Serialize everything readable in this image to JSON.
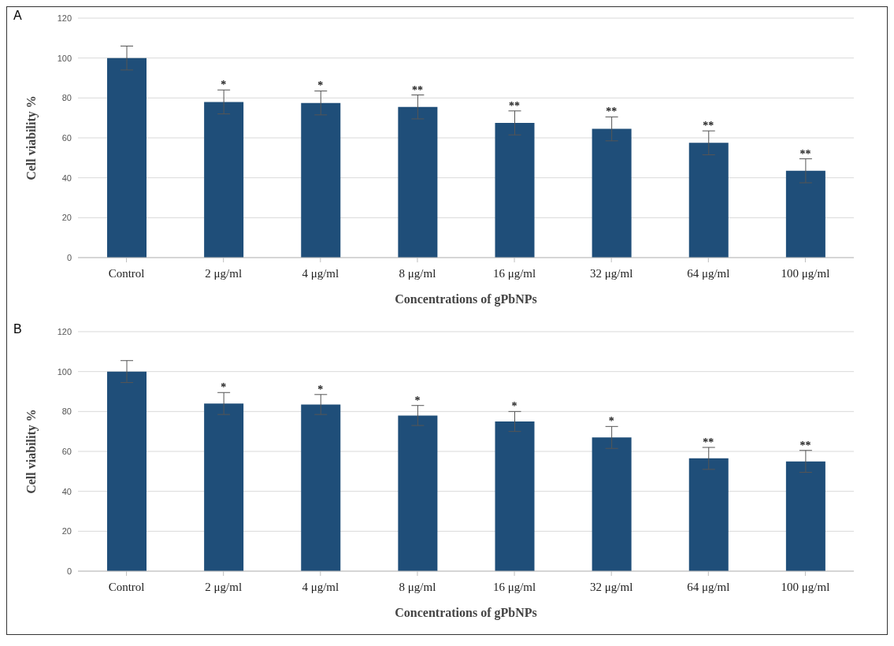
{
  "chart_data": [
    {
      "type": "bar",
      "title": "A",
      "xlabel": "Concentrations  of gPbNPs",
      "ylabel": "Cell viability  %",
      "categories": [
        "Control",
        "2 μg/ml",
        "4 μg/ml",
        "8 μg/ml",
        "16 μg/ml",
        "32 μg/ml",
        "64 μg/ml",
        "100 μg/ml"
      ],
      "values": [
        100,
        78,
        77.5,
        75.5,
        67.5,
        64.5,
        57.5,
        43.5
      ],
      "errors": [
        6,
        6,
        6,
        6,
        6,
        6,
        6,
        6
      ],
      "color": "#1f4e79",
      "ylim": [
        0,
        120
      ],
      "yticks": [
        0,
        20,
        40,
        60,
        80,
        100,
        120
      ],
      "grid": "y",
      "annotations": [
        {
          "text": "*",
          "x": "2 μg/ml",
          "y": 78
        },
        {
          "text": "*",
          "x": "4 μg/ml",
          "y": 77.5
        },
        {
          "text": "**",
          "x": "8 μg/ml",
          "y": 75.5
        },
        {
          "text": "**",
          "x": "16 μg/ml",
          "y": 67.5
        },
        {
          "text": "**",
          "x": "32 μg/ml",
          "y": 64.5
        },
        {
          "text": "**",
          "x": "64 μg/ml",
          "y": 57.5
        },
        {
          "text": "**",
          "x": "100 μg/ml",
          "y": 43.5
        }
      ]
    },
    {
      "type": "bar",
      "title": "B",
      "xlabel": "Concentrations  of gPbNPs",
      "ylabel": "Cell viability  %",
      "categories": [
        "Control",
        "2 μg/ml",
        "4 μg/ml",
        "8 μg/ml",
        "16 μg/ml",
        "32 μg/ml",
        "64 μg/ml",
        "100 μg/ml"
      ],
      "values": [
        100,
        84,
        83.5,
        78,
        75,
        67,
        56.5,
        55
      ],
      "errors": [
        5.5,
        5.5,
        5,
        5,
        5,
        5.5,
        5.5,
        5.5
      ],
      "color": "#1f4e79",
      "ylim": [
        0,
        120
      ],
      "yticks": [
        0,
        20,
        40,
        60,
        80,
        100,
        120
      ],
      "grid": "y",
      "annotations": [
        {
          "text": "*",
          "x": "2 μg/ml",
          "y": 84
        },
        {
          "text": "*",
          "x": "4 μg/ml",
          "y": 83.5
        },
        {
          "text": "*",
          "x": "8 μg/ml",
          "y": 78
        },
        {
          "text": "*",
          "x": "16 μg/ml",
          "y": 75
        },
        {
          "text": "*",
          "x": "32 μg/ml",
          "y": 67
        },
        {
          "text": "**",
          "x": "64 μg/ml",
          "y": 56.5
        },
        {
          "text": "**",
          "x": "100 μg/ml",
          "y": 55
        }
      ]
    }
  ]
}
